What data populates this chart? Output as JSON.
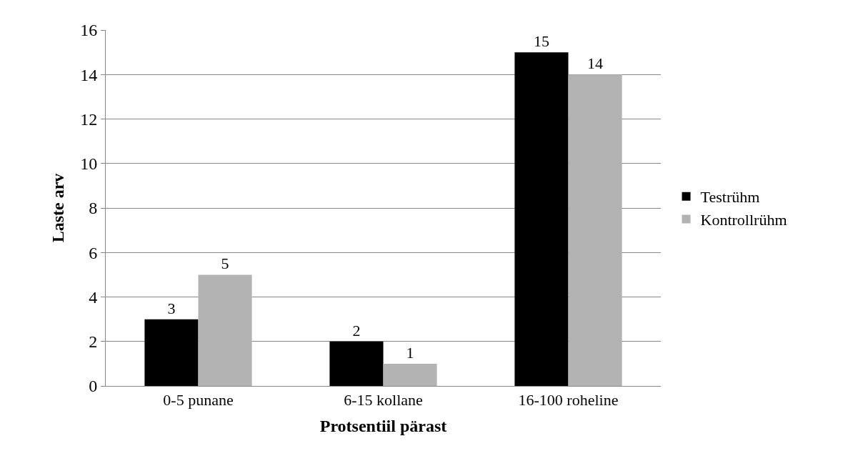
{
  "chart_data": {
    "type": "bar",
    "xlabel": "Protsentiil pärast",
    "ylabel": "Laste arv",
    "categories": [
      "0-5 punane",
      "6-15 kollane",
      "16-100 roheline"
    ],
    "series": [
      {
        "name": "Testrühm",
        "color": "#000000",
        "values": [
          3,
          2,
          15
        ]
      },
      {
        "name": "Kontrollrühm",
        "color": "#b3b3b3",
        "values": [
          5,
          1,
          14
        ]
      }
    ],
    "ylim": [
      0,
      16
    ],
    "yticks": [
      0,
      2,
      4,
      6,
      8,
      10,
      12,
      14,
      16
    ],
    "grid": "y",
    "legend": "right",
    "data_labels": true
  }
}
